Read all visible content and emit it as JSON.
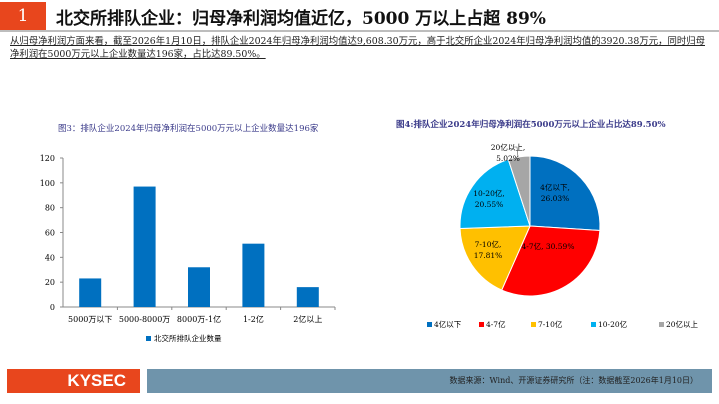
{
  "header": {
    "number": "1",
    "title": "北交所排队企业：归母净利润均值近亿，5000 万以上占超 89%"
  },
  "paragraph": "从归母净利润方面来看，截至2026年1月10日，排队企业2024年归母净利润均值达9,608.30万元，高于北交所企业2024年归母净利润均值的3920.38万元，同时归母净利润在5000万元以上企业数量达196家，占比达89.50%。",
  "chart_data": [
    {
      "type": "bar",
      "title": "图3：排队企业2024年归母净利润在5000万元以上企业数量达196家",
      "categories": [
        "5000万以下",
        "5000-8000万",
        "8000万-1亿",
        "1-2亿",
        "2亿以上"
      ],
      "series": [
        {
          "name": "北交所排队企业数量",
          "values": [
            23,
            97,
            32,
            51,
            16
          ],
          "color": "#0070c0"
        }
      ],
      "ylim": [
        0,
        120
      ],
      "yticks": [
        "0",
        "20",
        "40",
        "60",
        "80",
        "100",
        "120"
      ],
      "legend": "bottom"
    },
    {
      "type": "pie",
      "title": "图4:排队企业2024年归母净利润在5000万元以上企业占比达89.50%",
      "slices": [
        {
          "label": "4亿以下",
          "value": 26.03,
          "text": "4亿以下,",
          "pct": "26.03%",
          "color": "#0070c0"
        },
        {
          "label": "4-7亿",
          "value": 30.59,
          "text": "4-7亿, 30.59%",
          "pct": "",
          "color": "#ff0000"
        },
        {
          "label": "7-10亿",
          "value": 17.81,
          "text": "7-10亿,",
          "pct": "17.81%",
          "color": "#ffc000"
        },
        {
          "label": "10-20亿",
          "value": 20.55,
          "text": "10-20亿,",
          "pct": "20.55%",
          "color": "#00b0f0"
        },
        {
          "label": "20亿以上",
          "value": 5.02,
          "text": "20亿以上,",
          "pct": "5.02%",
          "color": "#a6a6a6"
        }
      ],
      "legend": "bottom"
    }
  ],
  "footer": {
    "logo": "KYSEC",
    "source": "数据来源：Wind、开源证券研究所（注：数据截至2026年1月10日）"
  }
}
